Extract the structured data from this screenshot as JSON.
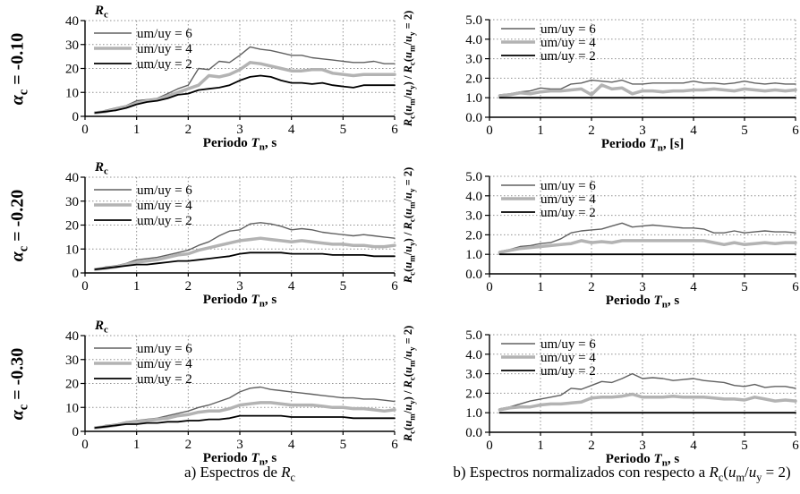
{
  "figure": {
    "rows": [
      {
        "label": "*α*_{c} = -0.10"
      },
      {
        "label": "*α*_{c} = -0.20"
      },
      {
        "label": "*α*_{c} = -0.30"
      }
    ],
    "captions": {
      "a": "a) Espectros de *R*_{c}",
      "b": "b) Espectros normalizados con respecto a *R*_{c}(*u*_{m}/*u*_{y} = 2)"
    },
    "colors": {
      "series6": "#606060",
      "series4": "#b3b3b3",
      "series2": "#000000",
      "grid": "#909090",
      "axis": "#000000"
    }
  },
  "chart_data": [
    {
      "type": "line",
      "position": "top-left",
      "group": "αc = -0.10",
      "ylabel": "*R*_{c}",
      "ylabel_position": "top",
      "xlabel": "Periodo *T*_{n}, s",
      "xlim": [
        0,
        6
      ],
      "ylim": [
        0,
        40
      ],
      "xticks": [
        "0",
        "1",
        "2",
        "3",
        "4",
        "5",
        "6"
      ],
      "yticks": [
        "0",
        "10",
        "20",
        "30",
        "40"
      ],
      "grid": "dotted",
      "legend_position": "top-left",
      "x": [
        0.2,
        0.4,
        0.6,
        0.8,
        1.0,
        1.2,
        1.4,
        1.6,
        1.8,
        2.0,
        2.2,
        2.4,
        2.6,
        2.8,
        3.0,
        3.2,
        3.4,
        3.6,
        3.8,
        4.0,
        4.2,
        4.4,
        4.6,
        4.8,
        5.0,
        5.2,
        5.4,
        5.6,
        5.8,
        6.0
      ],
      "series": [
        {
          "name": "um/uy = 6",
          "color_key": "series6",
          "width": 1.4,
          "values": [
            1.5,
            2.5,
            3.5,
            4.5,
            6.5,
            7,
            7.5,
            9.5,
            11.5,
            13,
            20,
            19.5,
            23,
            22.5,
            25.5,
            29,
            28,
            27.5,
            26.5,
            25.5,
            25.5,
            24.5,
            24,
            23.5,
            23,
            22.5,
            22.5,
            23,
            22,
            22
          ]
        },
        {
          "name": "um/uy = 4",
          "color_key": "series4",
          "width": 3.5,
          "values": [
            1.5,
            2,
            3,
            4,
            5.5,
            6.5,
            7,
            8.5,
            10,
            11.5,
            13,
            17,
            16.5,
            17.5,
            19.5,
            22.5,
            22,
            21,
            20,
            19,
            19,
            19.5,
            19.5,
            18,
            17.5,
            17,
            17.5,
            17.5,
            17.5,
            17.5
          ]
        },
        {
          "name": "um/uy = 2",
          "color_key": "series2",
          "width": 1.8,
          "values": [
            1.5,
            2,
            2.5,
            3.5,
            5,
            6,
            6.5,
            7.5,
            9,
            9.5,
            11,
            11.5,
            12,
            13,
            15,
            16.5,
            17,
            16.5,
            15,
            14,
            14,
            13.5,
            14,
            13,
            12.5,
            12,
            13,
            13,
            13,
            13
          ]
        }
      ]
    },
    {
      "type": "line",
      "position": "top-right",
      "group": "αc = -0.10",
      "ylabel": "*R*_{c}(*u*_{m}/*u*_{y}) / *R*_{c}(*u*_{m}/*u*_{y} = 2)",
      "ylabel_position": "side",
      "xlabel": "Periodo *T*_{n}, [s]",
      "xlim": [
        0,
        6
      ],
      "ylim": [
        0,
        5
      ],
      "xticks": [
        "0",
        "1",
        "2",
        "3",
        "4",
        "5",
        "6"
      ],
      "yticks": [
        "0.0",
        "1.0",
        "2.0",
        "3.0",
        "4.0",
        "5.0"
      ],
      "grid": "dotted",
      "legend_position": "top-left",
      "x": [
        0.2,
        0.4,
        0.6,
        0.8,
        1.0,
        1.2,
        1.4,
        1.6,
        1.8,
        2.0,
        2.2,
        2.4,
        2.6,
        2.8,
        3.0,
        3.2,
        3.4,
        3.6,
        3.8,
        4.0,
        4.2,
        4.4,
        4.6,
        4.8,
        5.0,
        5.2,
        5.4,
        5.6,
        5.8,
        6.0
      ],
      "series": [
        {
          "name": "um/uy = 6",
          "color_key": "series6",
          "width": 1.4,
          "values": [
            1.15,
            1.2,
            1.3,
            1.35,
            1.5,
            1.45,
            1.45,
            1.7,
            1.75,
            1.9,
            1.85,
            1.8,
            1.9,
            1.7,
            1.7,
            1.75,
            1.75,
            1.75,
            1.75,
            1.85,
            1.75,
            1.75,
            1.7,
            1.75,
            1.85,
            1.75,
            1.7,
            1.75,
            1.7,
            1.7
          ]
        },
        {
          "name": "um/uy = 4",
          "color_key": "series4",
          "width": 3.5,
          "values": [
            1.1,
            1.15,
            1.25,
            1.2,
            1.3,
            1.35,
            1.35,
            1.4,
            1.45,
            1.15,
            1.65,
            1.45,
            1.5,
            1.2,
            1.35,
            1.35,
            1.3,
            1.35,
            1.35,
            1.4,
            1.4,
            1.45,
            1.4,
            1.35,
            1.45,
            1.4,
            1.35,
            1.4,
            1.35,
            1.4
          ]
        },
        {
          "name": "um/uy = 2",
          "color_key": "series2",
          "width": 1.8,
          "values": [
            1,
            1,
            1,
            1,
            1,
            1,
            1,
            1,
            1,
            1,
            1,
            1,
            1,
            1,
            1,
            1,
            1,
            1,
            1,
            1,
            1,
            1,
            1,
            1,
            1,
            1,
            1,
            1,
            1,
            1
          ]
        }
      ]
    },
    {
      "type": "line",
      "position": "middle-left",
      "group": "αc = -0.20",
      "ylabel": "*R*_{c}",
      "ylabel_position": "top",
      "xlabel": "Periodo *T*_{n}, s",
      "xlim": [
        0,
        6
      ],
      "ylim": [
        0,
        40
      ],
      "xticks": [
        "0",
        "1",
        "2",
        "3",
        "4",
        "5",
        "6"
      ],
      "yticks": [
        "0",
        "10",
        "20",
        "30",
        "40"
      ],
      "grid": "dotted",
      "legend_position": "top-left",
      "x": [
        0.2,
        0.4,
        0.6,
        0.8,
        1.0,
        1.2,
        1.4,
        1.6,
        1.8,
        2.0,
        2.2,
        2.4,
        2.6,
        2.8,
        3.0,
        3.2,
        3.4,
        3.6,
        3.8,
        4.0,
        4.2,
        4.4,
        4.6,
        4.8,
        5.0,
        5.2,
        5.4,
        5.6,
        5.8,
        6.0
      ],
      "series": [
        {
          "name": "um/uy = 6",
          "color_key": "series6",
          "width": 1.4,
          "values": [
            1.5,
            2.5,
            3,
            4,
            5.5,
            6,
            6.5,
            7.5,
            8.5,
            9.5,
            11.5,
            13,
            15.5,
            17.5,
            18,
            20.5,
            21,
            20.5,
            19.5,
            18,
            18.5,
            18,
            17,
            16.5,
            16,
            15.5,
            16,
            15.5,
            15,
            14.5
          ]
        },
        {
          "name": "um/uy = 4",
          "color_key": "series4",
          "width": 3.5,
          "values": [
            1.5,
            2,
            2.5,
            3.5,
            4.5,
            5,
            5.5,
            6.5,
            7.5,
            8,
            9.5,
            10.5,
            11.5,
            12.5,
            13.5,
            14,
            14.5,
            14,
            13.5,
            13,
            13.5,
            13,
            12.5,
            12,
            12,
            11.5,
            11.5,
            11,
            11,
            11.5
          ]
        },
        {
          "name": "um/uy = 2",
          "color_key": "series2",
          "width": 1.8,
          "values": [
            1.5,
            2,
            2.5,
            3,
            3.5,
            3.5,
            4,
            4.5,
            5,
            5,
            5.5,
            6,
            6.5,
            7,
            8,
            8.5,
            8.5,
            8.5,
            8.5,
            8,
            8,
            8,
            8,
            7.5,
            7.5,
            7.5,
            7.5,
            7,
            7,
            7
          ]
        }
      ]
    },
    {
      "type": "line",
      "position": "middle-right",
      "group": "αc = -0.20",
      "ylabel": "*R*_{c}(*u*_{m}/*u*_{y}) / *R*_{c}(*u*_{m}/*u*_{y} = 2)",
      "ylabel_position": "side",
      "xlabel": "Periodo *T*_{n}, s",
      "xlim": [
        0,
        6
      ],
      "ylim": [
        0,
        5
      ],
      "xticks": [
        "0",
        "1",
        "2",
        "3",
        "4",
        "5",
        "6"
      ],
      "yticks": [
        "0.0",
        "1.0",
        "2.0",
        "3.0",
        "4.0",
        "5.0"
      ],
      "grid": "dotted",
      "legend_position": "top-left",
      "x": [
        0.2,
        0.4,
        0.6,
        0.8,
        1.0,
        1.2,
        1.4,
        1.6,
        1.8,
        2.0,
        2.2,
        2.4,
        2.6,
        2.8,
        3.0,
        3.2,
        3.4,
        3.6,
        3.8,
        4.0,
        4.2,
        4.4,
        4.6,
        4.8,
        5.0,
        5.2,
        5.4,
        5.6,
        5.8,
        6.0
      ],
      "series": [
        {
          "name": "um/uy = 6",
          "color_key": "series6",
          "width": 1.4,
          "values": [
            1.15,
            1.25,
            1.4,
            1.45,
            1.55,
            1.6,
            1.8,
            2.1,
            2.2,
            2.25,
            2.3,
            2.45,
            2.6,
            2.4,
            2.45,
            2.5,
            2.45,
            2.4,
            2.35,
            2.35,
            2.3,
            2.1,
            2.1,
            2.2,
            2.1,
            2.15,
            2.2,
            2.15,
            2.15,
            2.1
          ]
        },
        {
          "name": "um/uy = 4",
          "color_key": "series4",
          "width": 3.5,
          "values": [
            1.1,
            1.2,
            1.3,
            1.35,
            1.4,
            1.45,
            1.5,
            1.55,
            1.7,
            1.6,
            1.65,
            1.6,
            1.7,
            1.7,
            1.7,
            1.7,
            1.7,
            1.7,
            1.7,
            1.7,
            1.7,
            1.6,
            1.5,
            1.6,
            1.5,
            1.55,
            1.6,
            1.55,
            1.6,
            1.6
          ]
        },
        {
          "name": "um/uy = 2",
          "color_key": "series2",
          "width": 1.8,
          "values": [
            1,
            1,
            1,
            1,
            1,
            1,
            1,
            1,
            1,
            1,
            1,
            1,
            1,
            1,
            1,
            1,
            1,
            1,
            1,
            1,
            1,
            1,
            1,
            1,
            1,
            1,
            1,
            1,
            1,
            1
          ]
        }
      ]
    },
    {
      "type": "line",
      "position": "bottom-left",
      "group": "αc = -0.30",
      "ylabel": "*R*_{c}",
      "ylabel_position": "top",
      "xlabel": "Periodo *T*_{n}, s",
      "xlim": [
        0,
        6
      ],
      "ylim": [
        0,
        40
      ],
      "xticks": [
        "0",
        "1",
        "2",
        "3",
        "4",
        "5",
        "6"
      ],
      "yticks": [
        "0",
        "10",
        "20",
        "30",
        "40"
      ],
      "grid": "dotted",
      "legend_position": "top-left",
      "x": [
        0.2,
        0.4,
        0.6,
        0.8,
        1.0,
        1.2,
        1.4,
        1.6,
        1.8,
        2.0,
        2.2,
        2.4,
        2.6,
        2.8,
        3.0,
        3.2,
        3.4,
        3.6,
        3.8,
        4.0,
        4.2,
        4.4,
        4.6,
        4.8,
        5.0,
        5.2,
        5.4,
        5.6,
        5.8,
        6.0
      ],
      "series": [
        {
          "name": "um/uy = 6",
          "color_key": "series6",
          "width": 1.4,
          "values": [
            1.5,
            2.5,
            3,
            4,
            4.5,
            5,
            5.5,
            6.5,
            7.5,
            8.5,
            10,
            11,
            12.5,
            14,
            16.5,
            18,
            18.5,
            17.5,
            17,
            16.5,
            16,
            15.5,
            15,
            14.5,
            14,
            14,
            13.5,
            13.5,
            13,
            12.5
          ]
        },
        {
          "name": "um/uy = 4",
          "color_key": "series4",
          "width": 3.5,
          "values": [
            1.5,
            2,
            2.5,
            3.5,
            4,
            4.5,
            5,
            5.5,
            6.5,
            7,
            8,
            8.5,
            8.5,
            9.5,
            11,
            11.5,
            12,
            12,
            11.5,
            11,
            11,
            11,
            10.5,
            10,
            10,
            9.5,
            9.5,
            9,
            8.5,
            9
          ]
        },
        {
          "name": "um/uy = 2",
          "color_key": "series2",
          "width": 1.8,
          "values": [
            1.5,
            2,
            2.5,
            3,
            3,
            3.5,
            3.5,
            4,
            4,
            4.5,
            4.5,
            5,
            5,
            5.5,
            6.5,
            6.5,
            6.5,
            6.5,
            6.5,
            6,
            6,
            6,
            6,
            6,
            6,
            5.5,
            5.5,
            5.5,
            5.5,
            5.5
          ]
        }
      ]
    },
    {
      "type": "line",
      "position": "bottom-right",
      "group": "αc = -0.30",
      "ylabel": "*R*_{c}(*u*_{m}/*u*_{y}) / *R*_{c}(*u*_{m}/*u*_{y} = 2)",
      "ylabel_position": "side",
      "xlabel": "Periodo *T*_{n}, s",
      "xlim": [
        0,
        6
      ],
      "ylim": [
        0,
        5
      ],
      "xticks": [
        "0",
        "1",
        "2",
        "3",
        "4",
        "5",
        "6"
      ],
      "yticks": [
        "0.0",
        "1.0",
        "2.0",
        "3.0",
        "4.0",
        "5.0"
      ],
      "grid": "dotted",
      "legend_position": "top-left",
      "x": [
        0.2,
        0.4,
        0.6,
        0.8,
        1.0,
        1.2,
        1.4,
        1.6,
        1.8,
        2.0,
        2.2,
        2.4,
        2.6,
        2.8,
        3.0,
        3.2,
        3.4,
        3.6,
        3.8,
        4.0,
        4.2,
        4.4,
        4.6,
        4.8,
        5.0,
        5.2,
        5.4,
        5.6,
        5.8,
        6.0
      ],
      "series": [
        {
          "name": "um/uy = 6",
          "color_key": "series6",
          "width": 1.4,
          "values": [
            1.2,
            1.3,
            1.45,
            1.6,
            1.7,
            1.8,
            1.9,
            2.25,
            2.2,
            2.4,
            2.6,
            2.55,
            2.75,
            3,
            2.75,
            2.8,
            2.75,
            2.65,
            2.7,
            2.75,
            2.65,
            2.6,
            2.55,
            2.4,
            2.35,
            2.45,
            2.3,
            2.35,
            2.35,
            2.25
          ]
        },
        {
          "name": "um/uy = 4",
          "color_key": "series4",
          "width": 3.5,
          "values": [
            1.15,
            1.25,
            1.3,
            1.3,
            1.4,
            1.45,
            1.45,
            1.5,
            1.55,
            1.75,
            1.8,
            1.8,
            1.85,
            1.95,
            1.8,
            1.8,
            1.8,
            1.85,
            1.8,
            1.8,
            1.8,
            1.75,
            1.7,
            1.7,
            1.65,
            1.8,
            1.7,
            1.6,
            1.65,
            1.6
          ]
        },
        {
          "name": "um/uy = 2",
          "color_key": "series2",
          "width": 1.8,
          "values": [
            1,
            1,
            1,
            1,
            1,
            1,
            1,
            1,
            1,
            1,
            1,
            1,
            1,
            1,
            1,
            1,
            1,
            1,
            1,
            1,
            1,
            1,
            1,
            1,
            1,
            1,
            1,
            1,
            1,
            1
          ]
        }
      ]
    }
  ]
}
